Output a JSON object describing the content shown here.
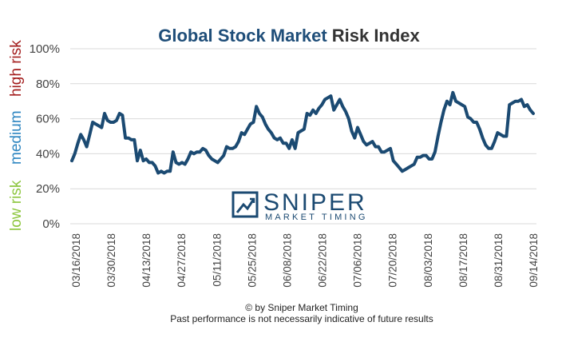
{
  "chart_data": {
    "type": "line",
    "title_part1": "Global Stock Market",
    "title_part2": "Risk Index",
    "y_ticks": [
      "0%",
      "20%",
      "40%",
      "60%",
      "80%",
      "100%"
    ],
    "ylim": [
      0,
      100
    ],
    "x_tick_labels": [
      "03/16/2018",
      "03/30/2018",
      "04/13/2018",
      "04/27/2018",
      "05/11/2018",
      "05/25/2018",
      "06/08/2018",
      "06/22/2018",
      "07/06/2018",
      "07/20/2018",
      "08/03/2018",
      "08/17/2018",
      "08/31/2018",
      "09/14/2018"
    ],
    "risk_labels": {
      "low": "low risk",
      "medium": "medium",
      "high": "high risk"
    },
    "colors": {
      "title_blue": "#1f4e79",
      "title_dark": "#333333",
      "line": "#1b4a72",
      "grid": "#d9d9d9",
      "low": "#8dc63f",
      "medium": "#2e86c1",
      "high": "#a31d1d"
    },
    "grid": true,
    "legend": "none",
    "series": [
      {
        "values": [
          36,
          40,
          46,
          51,
          48,
          44,
          51,
          58,
          57,
          56,
          55,
          63,
          59,
          58,
          58,
          59,
          63,
          62,
          49,
          49,
          48,
          48,
          36,
          42,
          36,
          37,
          35,
          35,
          33,
          29,
          30,
          29,
          30,
          30,
          41,
          35,
          34,
          35,
          34,
          37,
          41,
          40,
          41,
          41,
          43,
          42,
          39,
          37,
          36,
          35,
          37,
          39,
          44,
          43,
          43,
          44,
          47,
          52,
          51,
          54,
          57,
          58,
          67,
          63,
          61,
          57,
          54,
          52,
          49,
          48,
          49,
          46,
          46,
          43,
          48,
          43,
          52,
          53,
          54,
          63,
          62,
          65,
          63,
          66,
          68,
          71,
          72,
          73,
          65,
          68,
          71,
          67,
          64,
          60,
          53,
          49,
          55,
          51,
          47,
          45,
          46,
          47,
          44,
          44,
          41,
          41,
          42,
          43,
          36,
          34,
          32,
          30,
          31,
          32,
          33,
          34,
          38,
          38,
          39,
          39,
          37,
          37,
          41,
          50,
          58,
          65,
          70,
          68,
          75,
          70,
          69,
          68,
          67,
          61,
          60,
          58,
          58,
          54,
          49,
          45,
          43,
          43,
          47,
          52,
          51,
          50,
          50,
          68,
          69,
          70,
          70,
          71,
          67,
          68,
          65,
          63
        ]
      }
    ],
    "copyright": "© by Sniper Market Timing",
    "disclaimer": "Past performance is not necessarily indicative of future results",
    "logo": {
      "name": "SNIPER",
      "tagline": "MARKET TIMING",
      "icon": "chart-trend-icon"
    }
  }
}
